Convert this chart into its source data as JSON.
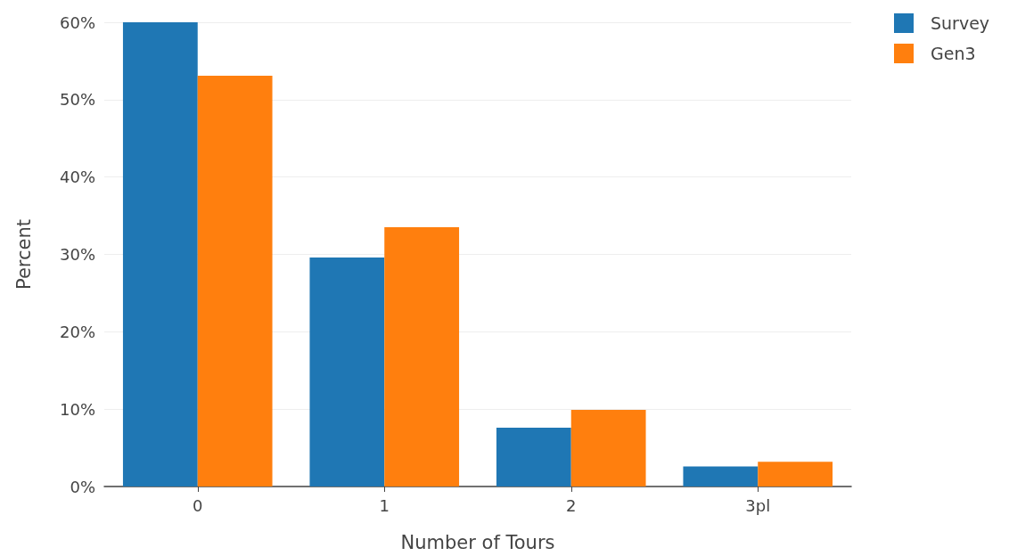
{
  "chart_data": {
    "type": "bar",
    "xlabel": "Number of Tours",
    "ylabel": "Percent",
    "categories": [
      "0",
      "1",
      "2",
      "3pl"
    ],
    "series": [
      {
        "name": "Survey",
        "color": "#1f77b4",
        "values": [
          60,
          29.6,
          7.6,
          2.6
        ]
      },
      {
        "name": "Gen3",
        "color": "#ff7f0e",
        "values": [
          53.1,
          33.5,
          9.9,
          3.2
        ]
      }
    ],
    "ylim": [
      0,
      60
    ],
    "yticks": [
      {
        "value": 0,
        "label": "0%"
      },
      {
        "value": 10,
        "label": "10%"
      },
      {
        "value": 20,
        "label": "20%"
      },
      {
        "value": 30,
        "label": "30%"
      },
      {
        "value": 40,
        "label": "40%"
      },
      {
        "value": 50,
        "label": "50%"
      },
      {
        "value": 60,
        "label": "60%"
      }
    ],
    "grid": "y",
    "legend": "top right"
  }
}
